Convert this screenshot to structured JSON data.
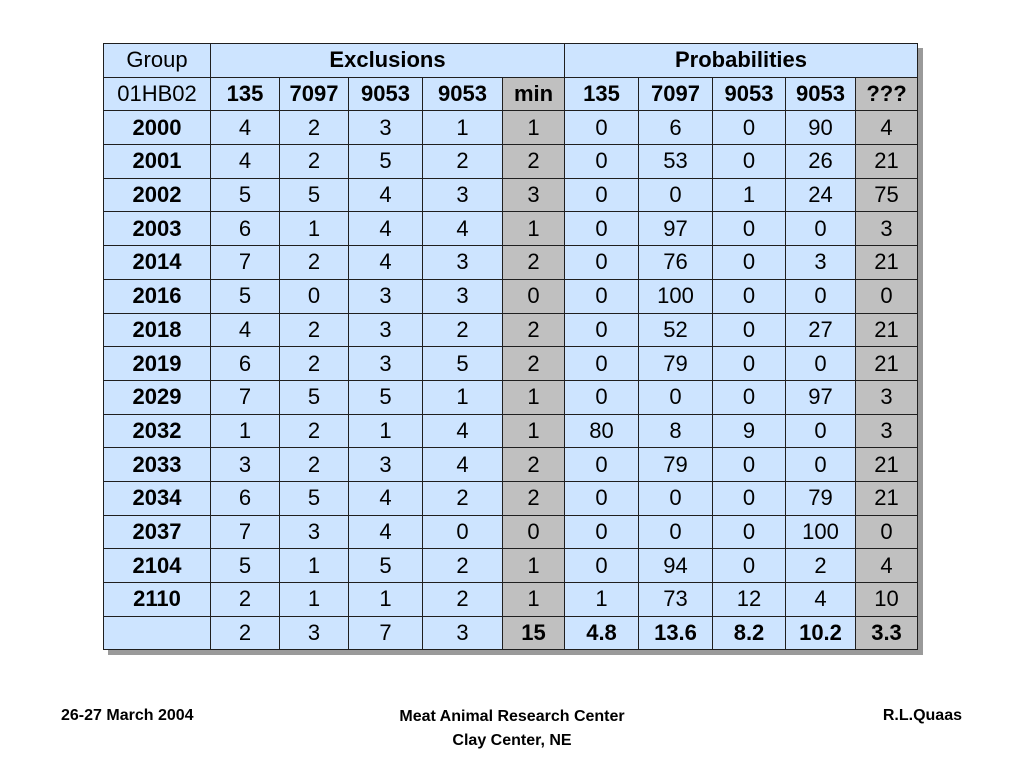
{
  "table": {
    "header1": {
      "group": "Group",
      "exclusions": "Exclusions",
      "probabilities": "Probabilities"
    },
    "header2": {
      "group": "01HB02",
      "exclusions": [
        "135",
        "7097",
        "9053",
        "9053",
        "min"
      ],
      "probabilities": [
        "135",
        "7097",
        "9053",
        "9053",
        "???"
      ]
    },
    "rows": [
      {
        "label": "2000",
        "excl": [
          "4",
          "2",
          "3",
          "1",
          "1"
        ],
        "prob": [
          "0",
          "6",
          "0",
          "90",
          "4"
        ]
      },
      {
        "label": "2001",
        "excl": [
          "4",
          "2",
          "5",
          "2",
          "2"
        ],
        "prob": [
          "0",
          "53",
          "0",
          "26",
          "21"
        ]
      },
      {
        "label": "2002",
        "excl": [
          "5",
          "5",
          "4",
          "3",
          "3"
        ],
        "prob": [
          "0",
          "0",
          "1",
          "24",
          "75"
        ]
      },
      {
        "label": "2003",
        "excl": [
          "6",
          "1",
          "4",
          "4",
          "1"
        ],
        "prob": [
          "0",
          "97",
          "0",
          "0",
          "3"
        ]
      },
      {
        "label": "2014",
        "excl": [
          "7",
          "2",
          "4",
          "3",
          "2"
        ],
        "prob": [
          "0",
          "76",
          "0",
          "3",
          "21"
        ]
      },
      {
        "label": "2016",
        "excl": [
          "5",
          "0",
          "3",
          "3",
          "0"
        ],
        "prob": [
          "0",
          "100",
          "0",
          "0",
          "0"
        ]
      },
      {
        "label": "2018",
        "excl": [
          "4",
          "2",
          "3",
          "2",
          "2"
        ],
        "prob": [
          "0",
          "52",
          "0",
          "27",
          "21"
        ]
      },
      {
        "label": "2019",
        "excl": [
          "6",
          "2",
          "3",
          "5",
          "2"
        ],
        "prob": [
          "0",
          "79",
          "0",
          "0",
          "21"
        ]
      },
      {
        "label": "2029",
        "excl": [
          "7",
          "5",
          "5",
          "1",
          "1"
        ],
        "prob": [
          "0",
          "0",
          "0",
          "97",
          "3"
        ]
      },
      {
        "label": "2032",
        "excl": [
          "1",
          "2",
          "1",
          "4",
          "1"
        ],
        "prob": [
          "80",
          "8",
          "9",
          "0",
          "3"
        ]
      },
      {
        "label": "2033",
        "excl": [
          "3",
          "2",
          "3",
          "4",
          "2"
        ],
        "prob": [
          "0",
          "79",
          "0",
          "0",
          "21"
        ]
      },
      {
        "label": "2034",
        "excl": [
          "6",
          "5",
          "4",
          "2",
          "2"
        ],
        "prob": [
          "0",
          "0",
          "0",
          "79",
          "21"
        ]
      },
      {
        "label": "2037",
        "excl": [
          "7",
          "3",
          "4",
          "0",
          "0"
        ],
        "prob": [
          "0",
          "0",
          "0",
          "100",
          "0"
        ]
      },
      {
        "label": "2104",
        "excl": [
          "5",
          "1",
          "5",
          "2",
          "1"
        ],
        "prob": [
          "0",
          "94",
          "0",
          "2",
          "4"
        ]
      },
      {
        "label": "2110",
        "excl": [
          "2",
          "1",
          "1",
          "2",
          "1"
        ],
        "prob": [
          "1",
          "73",
          "12",
          "4",
          "10"
        ]
      }
    ],
    "totals": {
      "label": "",
      "excl": [
        "2",
        "3",
        "7",
        "3",
        "15"
      ],
      "prob": [
        "4.8",
        "13.6",
        "8.2",
        "10.2",
        "3.3"
      ]
    }
  },
  "footer": {
    "left": "26-27 March 2004",
    "center_line1": "Meat Animal Research Center",
    "center_line2": "Clay Center, NE",
    "right": "R.L.Quaas"
  },
  "colors": {
    "cell_background": "#cde4ff",
    "highlight_column": "#c0c0c0",
    "exclusion_text": "#8c8c8c"
  }
}
